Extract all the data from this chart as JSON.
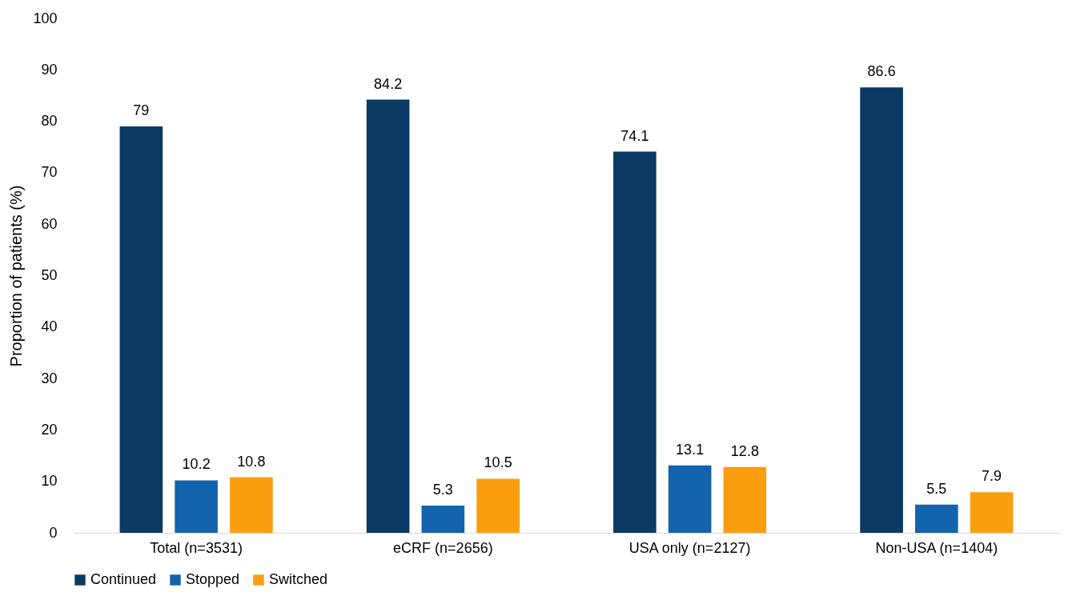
{
  "chart_data": {
    "type": "bar",
    "ylabel": "Proportion of patients (%)",
    "categories": [
      "Total (n=3531)",
      "eCRF (n=2656)",
      "USA only (n=2127)",
      "Non-USA (n=1404)"
    ],
    "series": [
      {
        "name": "Continued",
        "color": "#0b3a64",
        "values": [
          79,
          84.2,
          74.1,
          86.6
        ]
      },
      {
        "name": "Stopped",
        "color": "#1363ad",
        "values": [
          10.2,
          5.3,
          13.1,
          5.5
        ]
      },
      {
        "name": "Switched",
        "color": "#fa9e0f",
        "values": [
          10.8,
          10.5,
          12.8,
          7.9
        ]
      }
    ],
    "ylim": [
      0,
      100
    ],
    "yticks": [
      0,
      10,
      20,
      30,
      40,
      50,
      60,
      70,
      80,
      90,
      100
    ],
    "grid": false,
    "legend": "bottom",
    "data_labels": true
  }
}
